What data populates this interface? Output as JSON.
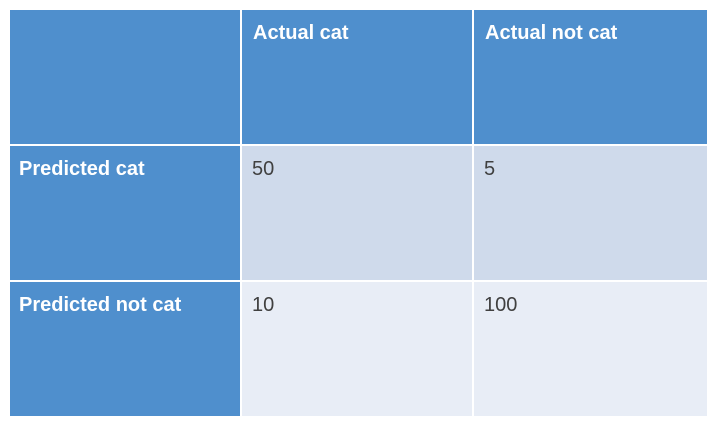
{
  "table": {
    "columns": [
      "Actual cat",
      "Actual not cat"
    ],
    "rows": [
      {
        "label": "Predicted cat",
        "values": [
          "50",
          "5"
        ]
      },
      {
        "label": "Predicted not cat",
        "values": [
          "10",
          "100"
        ]
      }
    ]
  },
  "colors": {
    "header_blue": "#4f8fcd",
    "row_odd": "#cfdaeb",
    "row_even": "#e8edf6",
    "value_text": "#404040"
  }
}
